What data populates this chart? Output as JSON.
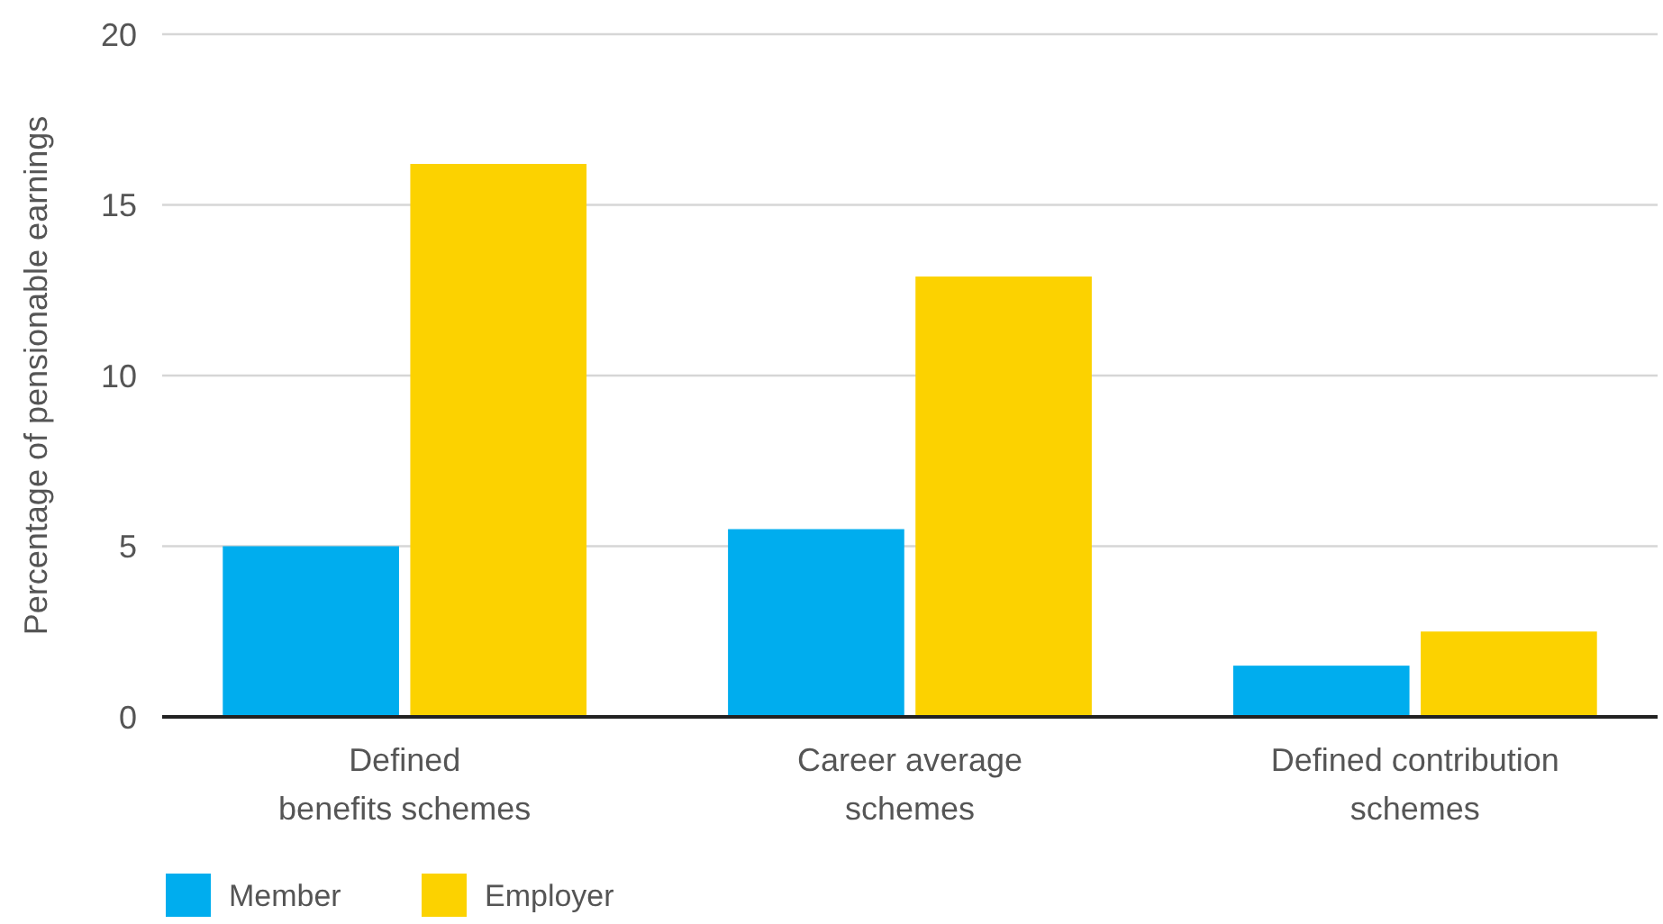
{
  "chart_data": {
    "type": "bar",
    "ylabel": "Percentage of pensionable earnings",
    "categories": [
      "Defined\nbenefits schemes",
      "Career average\nschemes",
      "Defined contribution\nschemes"
    ],
    "series": [
      {
        "name": "Member",
        "color": "#00adee",
        "values": [
          5.0,
          5.5,
          1.5
        ]
      },
      {
        "name": "Employer",
        "color": "#fcd200",
        "values": [
          16.2,
          12.9,
          2.5
        ]
      }
    ],
    "ylim": [
      0,
      20
    ],
    "yticks": [
      0,
      5,
      10,
      15,
      20
    ],
    "grid": "y",
    "legend": "bottom left"
  }
}
